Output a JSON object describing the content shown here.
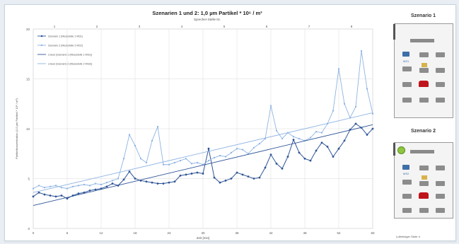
{
  "chart_data": {
    "type": "line",
    "title": "Szenarien 1 und 2: 1,0 µm Partikel * 10⁶ / m³",
    "subtitle": "Sprecher-Stelle Nr.",
    "xlabel": "Zeit [min]",
    "ylabel": "Partikelkonzentration (1,0 µm Partikel * 10⁶ / m³)",
    "xlim": [
      0,
      60
    ],
    "ylim": [
      0,
      20
    ],
    "x_ticks": [
      0,
      6,
      12,
      18,
      24,
      30,
      36,
      42,
      48,
      54,
      60
    ],
    "y_ticks": [
      0,
      5,
      10,
      15,
      20
    ],
    "top_ticks": [
      "1",
      "2",
      "3",
      "4",
      "5",
      "6",
      "7",
      "8"
    ],
    "grid": true,
    "legend_position": "top-left",
    "series": [
      {
        "name": "Szenario 1 (Messstelle 1 MS1)",
        "color": "#2f5597",
        "style": "line-markers",
        "x": [
          0,
          1,
          2,
          3,
          4,
          5,
          6,
          7,
          8,
          9,
          10,
          11,
          12,
          13,
          14,
          15,
          16,
          17,
          18,
          19,
          20,
          21,
          22,
          23,
          24,
          25,
          26,
          27,
          28,
          29,
          30,
          31,
          32,
          33,
          34,
          35,
          36,
          37,
          38,
          39,
          40,
          41,
          42,
          43,
          44,
          45,
          46,
          47,
          48,
          49,
          50,
          51,
          52,
          53,
          54,
          55,
          56,
          57,
          58,
          59,
          60
        ],
        "values": [
          3.2,
          3.6,
          3.4,
          3.3,
          3.2,
          3.3,
          3.0,
          3.3,
          3.5,
          3.6,
          3.8,
          3.9,
          4.0,
          4.2,
          4.5,
          4.3,
          4.9,
          5.7,
          5.0,
          4.8,
          4.7,
          4.6,
          4.5,
          4.5,
          4.6,
          4.7,
          5.3,
          5.4,
          5.5,
          5.6,
          5.5,
          8.0,
          5.1,
          4.6,
          4.8,
          5.0,
          5.6,
          5.4,
          5.2,
          5.0,
          5.1,
          6.1,
          7.4,
          6.5,
          6.0,
          7.2,
          8.9,
          7.6,
          7.0,
          6.8,
          7.8,
          8.6,
          8.2,
          7.2,
          8.0,
          8.8,
          9.9,
          10.5,
          10.1,
          9.4,
          10.0
        ]
      },
      {
        "name": "Szenario 2 (Messstelle 2 MS2)",
        "color": "#8eb4e3",
        "style": "line-markers",
        "x": [
          0,
          1,
          2,
          3,
          4,
          5,
          6,
          7,
          8,
          9,
          10,
          11,
          12,
          13,
          14,
          15,
          16,
          17,
          18,
          19,
          20,
          21,
          22,
          23,
          24,
          25,
          26,
          27,
          28,
          29,
          30,
          31,
          32,
          33,
          34,
          35,
          36,
          37,
          38,
          39,
          40,
          41,
          42,
          43,
          44,
          45,
          46,
          47,
          48,
          49,
          50,
          51,
          52,
          53,
          54,
          55,
          56,
          57,
          58,
          59,
          60
        ],
        "values": [
          4.0,
          4.3,
          4.1,
          4.2,
          4.3,
          4.1,
          4.0,
          4.2,
          4.3,
          4.4,
          4.3,
          4.5,
          4.4,
          4.6,
          4.8,
          5.0,
          7.0,
          9.4,
          8.3,
          7.0,
          6.6,
          8.8,
          10.2,
          6.4,
          6.4,
          6.6,
          6.8,
          7.0,
          6.5,
          6.6,
          6.4,
          6.8,
          7.1,
          7.3,
          7.2,
          7.6,
          8.0,
          7.9,
          7.5,
          8.1,
          8.5,
          9.0,
          12.3,
          9.8,
          9.0,
          9.6,
          9.2,
          9.0,
          8.8,
          9.1,
          9.7,
          9.6,
          10.5,
          11.8,
          16.0,
          12.5,
          11.1,
          12.2,
          17.8,
          14.0,
          11.5
        ]
      },
      {
        "name": "Linear (Szenario 1 (Messstelle 1 MS1))",
        "color": "#2f5597",
        "style": "trend",
        "x": [
          0,
          60
        ],
        "values": [
          2.3,
          10.4
        ]
      },
      {
        "name": "Linear (Szenario 2 (Messstelle 2 MS2))",
        "color": "#8eb4e3",
        "style": "trend",
        "x": [
          0,
          60
        ],
        "values": [
          3.6,
          11.6
        ]
      }
    ]
  },
  "side_panel": {
    "scenario1_title": "Szenario 1",
    "scenario2_title": "Szenario 2",
    "ms1_label": "MS1",
    "ms2_label": "MS2",
    "footer_note": "Luftreiniger Stufe 4"
  },
  "colors": {
    "series1": "#2f5597",
    "series2": "#8eb4e3",
    "grid": "#d9d9d9"
  }
}
